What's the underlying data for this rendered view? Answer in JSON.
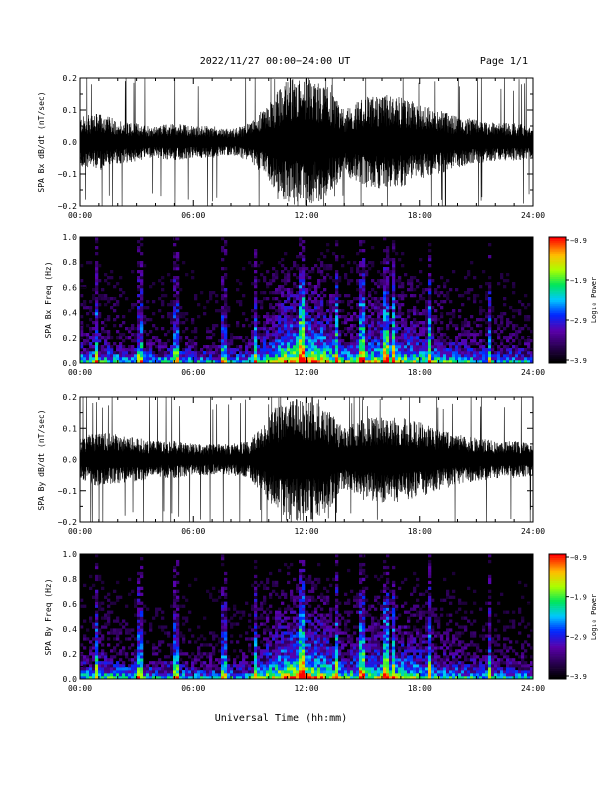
{
  "header": {
    "title": "2022/11/27  00:00−24:00 UT",
    "page": "Page 1/1"
  },
  "footer": {
    "xlabel": "Universal Time (hh:mm)"
  },
  "time_ticks": [
    "00:00",
    "06:00",
    "12:00",
    "18:00",
    "24:00"
  ],
  "chart_data": [
    {
      "type": "line",
      "ylabel": "SPA Bx dB/dt (nT/sec)",
      "xlim": [
        0,
        24
      ],
      "ylim": [
        -0.2,
        0.2
      ],
      "yticks": [
        "0.2",
        "0.1",
        "0.0",
        "−0.1",
        "−0.2"
      ],
      "envelope": {
        "x_hours": [
          0,
          1,
          2,
          3,
          4,
          5,
          6,
          7,
          8,
          9,
          10,
          11,
          12,
          13,
          14,
          15,
          16,
          17,
          18,
          19,
          20,
          21,
          22,
          23,
          24
        ],
        "amplitude": [
          0.08,
          0.09,
          0.07,
          0.06,
          0.05,
          0.06,
          0.05,
          0.05,
          0.04,
          0.06,
          0.12,
          0.2,
          0.2,
          0.18,
          0.1,
          0.14,
          0.15,
          0.14,
          0.12,
          0.1,
          0.08,
          0.07,
          0.06,
          0.06,
          0.05
        ]
      }
    },
    {
      "type": "heatmap",
      "ylabel": "SPA Bx Freq (Hz)",
      "xlim": [
        0,
        24
      ],
      "ylim": [
        0,
        1.0
      ],
      "yticks": [
        "1.0",
        "0.8",
        "0.6",
        "0.4",
        "0.2",
        "0.0"
      ],
      "colorbar": {
        "label": "Log₁₀ Power",
        "ticks": [
          "−0.9",
          "−1.9",
          "−2.9",
          "−3.9"
        ]
      }
    },
    {
      "type": "line",
      "ylabel": "SPA By dB/dt (nT/sec)",
      "xlim": [
        0,
        24
      ],
      "ylim": [
        -0.2,
        0.2
      ],
      "yticks": [
        "0.2",
        "0.1",
        "0.0",
        "−0.1",
        "−0.2"
      ],
      "envelope": {
        "x_hours": [
          0,
          1,
          2,
          3,
          4,
          5,
          6,
          7,
          8,
          9,
          10,
          11,
          12,
          13,
          14,
          15,
          16,
          17,
          18,
          19,
          20,
          21,
          22,
          23,
          24
        ],
        "amplitude": [
          0.07,
          0.09,
          0.08,
          0.07,
          0.06,
          0.06,
          0.05,
          0.05,
          0.05,
          0.06,
          0.14,
          0.2,
          0.2,
          0.17,
          0.1,
          0.13,
          0.14,
          0.14,
          0.12,
          0.1,
          0.08,
          0.07,
          0.06,
          0.06,
          0.05
        ]
      }
    },
    {
      "type": "heatmap",
      "ylabel": "SPA By Freq (Hz)",
      "xlim": [
        0,
        24
      ],
      "ylim": [
        0,
        1.0
      ],
      "yticks": [
        "1.0",
        "0.8",
        "0.6",
        "0.4",
        "0.2",
        "0.0"
      ],
      "colorbar": {
        "label": "Log₁₀ Power",
        "ticks": [
          "−0.9",
          "−1.9",
          "−2.9",
          "−3.9"
        ]
      }
    }
  ]
}
